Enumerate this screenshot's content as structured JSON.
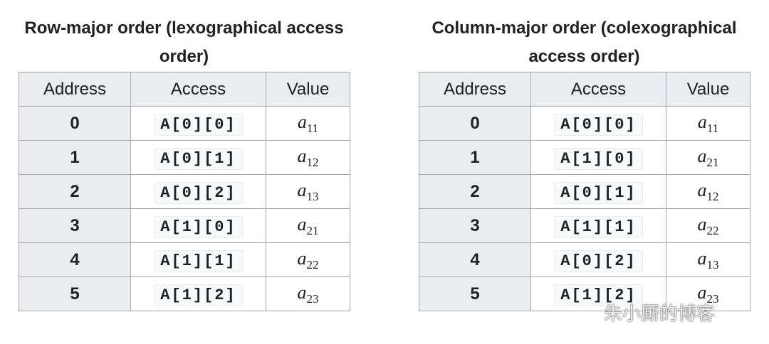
{
  "tables": [
    {
      "caption": "Row-major order (lexographical access order)",
      "headers": [
        "Address",
        "Access",
        "Value"
      ],
      "rows": [
        [
          "0",
          "A[0][0]",
          {
            "base": "a",
            "sub": "11"
          }
        ],
        [
          "1",
          "A[0][1]",
          {
            "base": "a",
            "sub": "12"
          }
        ],
        [
          "2",
          "A[0][2]",
          {
            "base": "a",
            "sub": "13"
          }
        ],
        [
          "3",
          "A[1][0]",
          {
            "base": "a",
            "sub": "21"
          }
        ],
        [
          "4",
          "A[1][1]",
          {
            "base": "a",
            "sub": "22"
          }
        ],
        [
          "5",
          "A[1][2]",
          {
            "base": "a",
            "sub": "23"
          }
        ]
      ]
    },
    {
      "caption": "Column-major order (colexographical access order)",
      "headers": [
        "Address",
        "Access",
        "Value"
      ],
      "rows": [
        [
          "0",
          "A[0][0]",
          {
            "base": "a",
            "sub": "11"
          }
        ],
        [
          "1",
          "A[1][0]",
          {
            "base": "a",
            "sub": "21"
          }
        ],
        [
          "2",
          "A[0][1]",
          {
            "base": "a",
            "sub": "12"
          }
        ],
        [
          "3",
          "A[1][1]",
          {
            "base": "a",
            "sub": "22"
          }
        ],
        [
          "4",
          "A[0][2]",
          {
            "base": "a",
            "sub": "13"
          }
        ],
        [
          "5",
          "A[1][2]",
          {
            "base": "a",
            "sub": "23"
          }
        ]
      ]
    }
  ],
  "watermark": "朱小厮的博客"
}
